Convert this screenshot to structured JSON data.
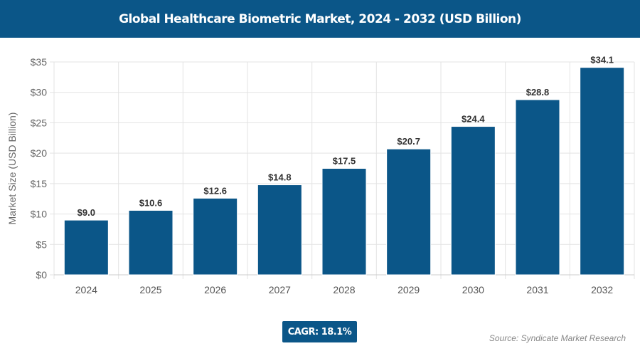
{
  "title": "Global Healthcare Biometric Market, 2024 - 2032 (USD Billion)",
  "cagr": "CAGR: 18.1%",
  "source": "Source: Syndicate Market Research",
  "colors": {
    "bar": "#0b5688",
    "header": "#0b5688"
  },
  "chart_data": {
    "type": "bar",
    "title": "Global Healthcare Biometric Market, 2024 - 2032 (USD Billion)",
    "xlabel": "",
    "ylabel": "Market Size (USD Billion)",
    "categories": [
      "2024",
      "2025",
      "2026",
      "2027",
      "2028",
      "2029",
      "2030",
      "2031",
      "2032"
    ],
    "values": [
      9.0,
      10.6,
      12.6,
      14.8,
      17.5,
      20.7,
      24.4,
      28.8,
      34.1
    ],
    "data_labels": [
      "$9.0",
      "$10.6",
      "$12.6",
      "$14.8",
      "$17.5",
      "$20.7",
      "$24.4",
      "$28.8",
      "$34.1"
    ],
    "ylim": [
      0,
      35
    ],
    "yticks": [
      0,
      5,
      10,
      15,
      20,
      25,
      30,
      35
    ],
    "ytick_labels": [
      "$0",
      "$5",
      "$10",
      "$15",
      "$20",
      "$25",
      "$30",
      "$35"
    ],
    "grid": true,
    "legend": "none"
  }
}
